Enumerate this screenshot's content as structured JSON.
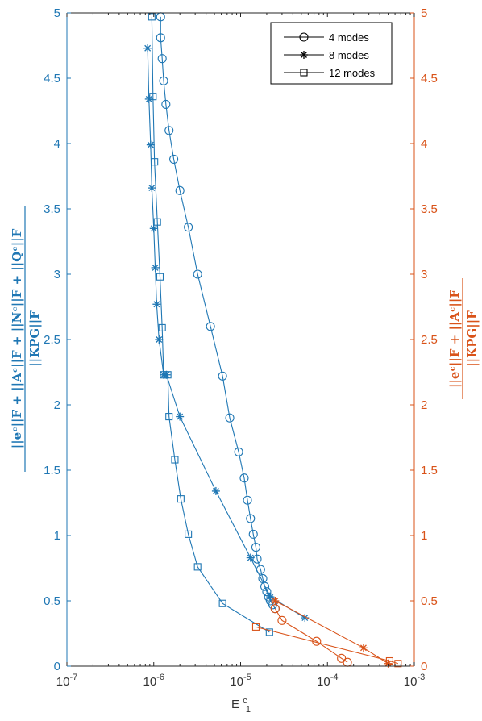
{
  "chart_data": {
    "type": "line",
    "title": "",
    "xlabel": "E",
    "xlabel_sup": "c",
    "xlabel_sub": "1",
    "x_scale": "log",
    "xlim": [
      1e-07,
      0.001
    ],
    "x_ticks": [
      {
        "base": "10",
        "exp": "-7"
      },
      {
        "base": "10",
        "exp": "-6"
      },
      {
        "base": "10",
        "exp": "-5"
      },
      {
        "base": "10",
        "exp": "-4"
      },
      {
        "base": "10",
        "exp": "-3"
      }
    ],
    "left_axis": {
      "color": "#1F77B4",
      "ylim": [
        0,
        5
      ],
      "ticks": [
        "0",
        "0.5",
        "1",
        "1.5",
        "2",
        "2.5",
        "3",
        "3.5",
        "4",
        "4.5",
        "5"
      ],
      "label_numerator": "||eᶜ||F + ||Aᶜ||F + ||Nᶜ||F + ||Qᶜ||F",
      "label_denominator": "||KPG||F"
    },
    "right_axis": {
      "color": "#D95319",
      "ylim": [
        0,
        5
      ],
      "ticks": [
        "0",
        "0.5",
        "1",
        "1.5",
        "2",
        "2.5",
        "3",
        "3.5",
        "4",
        "4.5",
        "5"
      ],
      "label_numerator": "||eᶜ||F + ||Aᶜ||F",
      "label_denominator": "||KPG||F"
    },
    "legend": {
      "placement": "top-right",
      "entries": [
        {
          "label": "4 modes",
          "marker": "circle"
        },
        {
          "label": "8 modes",
          "marker": "star"
        },
        {
          "label": "12 modes",
          "marker": "square"
        }
      ]
    },
    "series": [
      {
        "axis": "left",
        "marker": "circle",
        "color": "#1F77B4",
        "x": [
          1.2e-06,
          1.2e-06,
          1.25e-06,
          1.3e-06,
          1.38e-06,
          1.5e-06,
          1.7e-06,
          2e-06,
          2.5e-06,
          3.2e-06,
          4.5e-06,
          6.2e-06,
          7.5e-06,
          9.5e-06,
          1.1e-05,
          1.2e-05,
          1.3e-05,
          1.4e-05,
          1.5e-05,
          1.55e-05,
          1.7e-05,
          1.8e-05,
          1.9e-05,
          2e-05,
          2.1e-05,
          2.2e-05,
          2.35e-05,
          2.5e-05
        ],
        "y": [
          4.97,
          4.81,
          4.65,
          4.48,
          4.3,
          4.1,
          3.88,
          3.64,
          3.36,
          3.0,
          2.6,
          2.22,
          1.9,
          1.64,
          1.44,
          1.27,
          1.13,
          1.01,
          0.91,
          0.82,
          0.74,
          0.67,
          0.61,
          0.57,
          0.53,
          0.5,
          0.47,
          0.44
        ]
      },
      {
        "axis": "left",
        "marker": "star",
        "color": "#1F77B4",
        "x": [
          8.5e-07,
          8.8e-07,
          9.2e-07,
          9.5e-07,
          1e-06,
          1.04e-06,
          1.08e-06,
          1.15e-06,
          1.3e-06,
          1.4e-06,
          2e-06,
          5.2e-06,
          1.3e-05,
          2.2e-05,
          5.5e-05
        ],
        "y": [
          4.73,
          4.34,
          3.99,
          3.66,
          3.35,
          3.05,
          2.77,
          2.5,
          2.23,
          2.23,
          1.91,
          1.34,
          0.83,
          0.53,
          0.37
        ]
      },
      {
        "axis": "left",
        "marker": "square",
        "color": "#1F77B4",
        "x": [
          9.5e-07,
          9.8e-07,
          1.02e-06,
          1.1e-06,
          1.18e-06,
          1.25e-06,
          1.3e-06,
          1.45e-06,
          1.5e-06,
          1.75e-06,
          2.05e-06,
          2.5e-06,
          3.2e-06,
          6.2e-06,
          2.15e-05
        ],
        "y": [
          4.97,
          4.36,
          3.86,
          3.4,
          2.98,
          2.59,
          2.23,
          2.23,
          1.91,
          1.58,
          1.28,
          1.01,
          0.76,
          0.48,
          0.26
        ]
      },
      {
        "axis": "right",
        "marker": "circle",
        "color": "#D95319",
        "x": [
          2.5e-05,
          3e-05,
          7.5e-05,
          0.000145,
          0.00017
        ],
        "y": [
          0.44,
          0.35,
          0.19,
          0.06,
          0.03
        ]
      },
      {
        "axis": "right",
        "marker": "star",
        "color": "#D95319",
        "x": [
          2.5e-05,
          0.00026,
          0.0005
        ],
        "y": [
          0.5,
          0.14,
          0.02
        ]
      },
      {
        "axis": "right",
        "marker": "square",
        "color": "#D95319",
        "x": [
          1.5e-05,
          0.00052,
          0.00065
        ],
        "y": [
          0.3,
          0.04,
          0.02
        ]
      }
    ]
  }
}
